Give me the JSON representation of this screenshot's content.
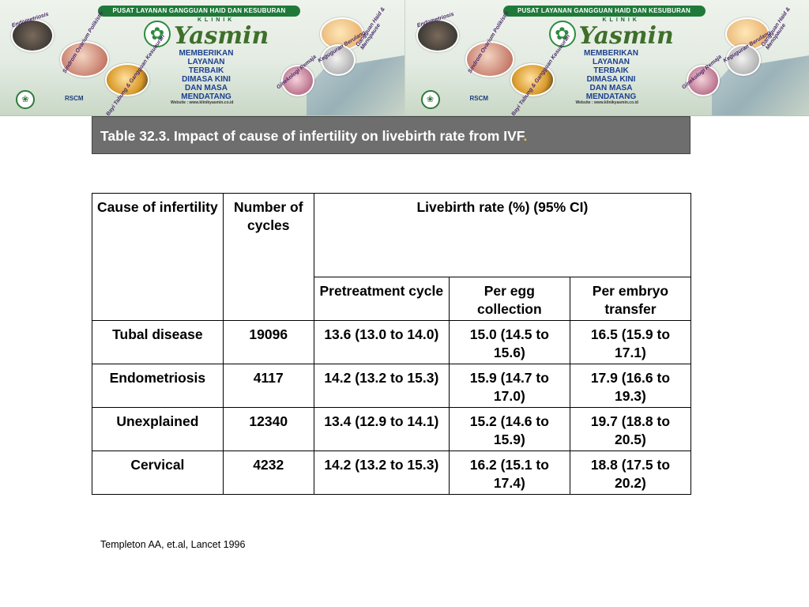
{
  "banner": {
    "strip_text": "PUSAT LAYANAN GANGGUAN HAID DAN KESUBURAN",
    "klinik": "KLINIK",
    "brand": "Yasmin",
    "slogan": [
      "MEMBERIKAN",
      "LAYANAN",
      "TERBAIK",
      "DIMASA KINI",
      "DAN MASA",
      "MENDATANG"
    ],
    "website": "Website : www.klinikyasmin.co.id",
    "labels": [
      "Endometriosis",
      "Sindrom Ovarium Polikistik",
      "Bayi Tabung & Gangguan Kesuburan",
      "Gangguan Haid & Menopause",
      "Keguguran Berulang",
      "Ginekologi Remaja"
    ],
    "logo_rscm": "RSCM",
    "icons": [
      "flower-icon",
      "seal-icon"
    ]
  },
  "title": {
    "text": "Table 32.3. Impact of cause of infertility on livebirth rate from IVF",
    "trailing_dot": "."
  },
  "table": {
    "headers": {
      "cause": "Cause of infertility",
      "cycles": "Number of cycles",
      "livebirth": "Livebirth rate (%) (95% CI)",
      "sub": [
        "Pretreatment cycle",
        "Per egg collection",
        "Per embryo transfer"
      ]
    },
    "rows": [
      {
        "cause": "Tubal disease",
        "cycles": "19096",
        "pretreatment": "13.6 (13.0 to 14.0)",
        "per_egg": "15.0 (14.5 to 15.6)",
        "per_embryo": "16.5 (15.9 to 17.1)"
      },
      {
        "cause": "Endometriosis",
        "cycles": "4117",
        "pretreatment": "14.2 (13.2 to 15.3)",
        "per_egg": "15.9 (14.7 to 17.0)",
        "per_embryo": "17.9 (16.6 to 19.3)"
      },
      {
        "cause": "Unexplained",
        "cycles": "12340",
        "pretreatment": "13.4 (12.9 to 14.1)",
        "per_egg": "15.2 (14.6 to 15.9)",
        "per_embryo": "19.7 (18.8 to 20.5)"
      },
      {
        "cause": "Cervical",
        "cycles": "4232",
        "pretreatment": "14.2 (13.2 to 15.3)",
        "per_egg": "16.2 (15.1 to 17.4)",
        "per_embryo": "18.8 (17.5 to 20.2)"
      }
    ]
  },
  "citation": "Templeton AA, et.al, Lancet 1996",
  "colors": {
    "title_bg": "#6e6e6e",
    "title_text": "#ffffff",
    "banner_green": "#1f7a3a",
    "slogan_blue": "#1c3f8f"
  }
}
